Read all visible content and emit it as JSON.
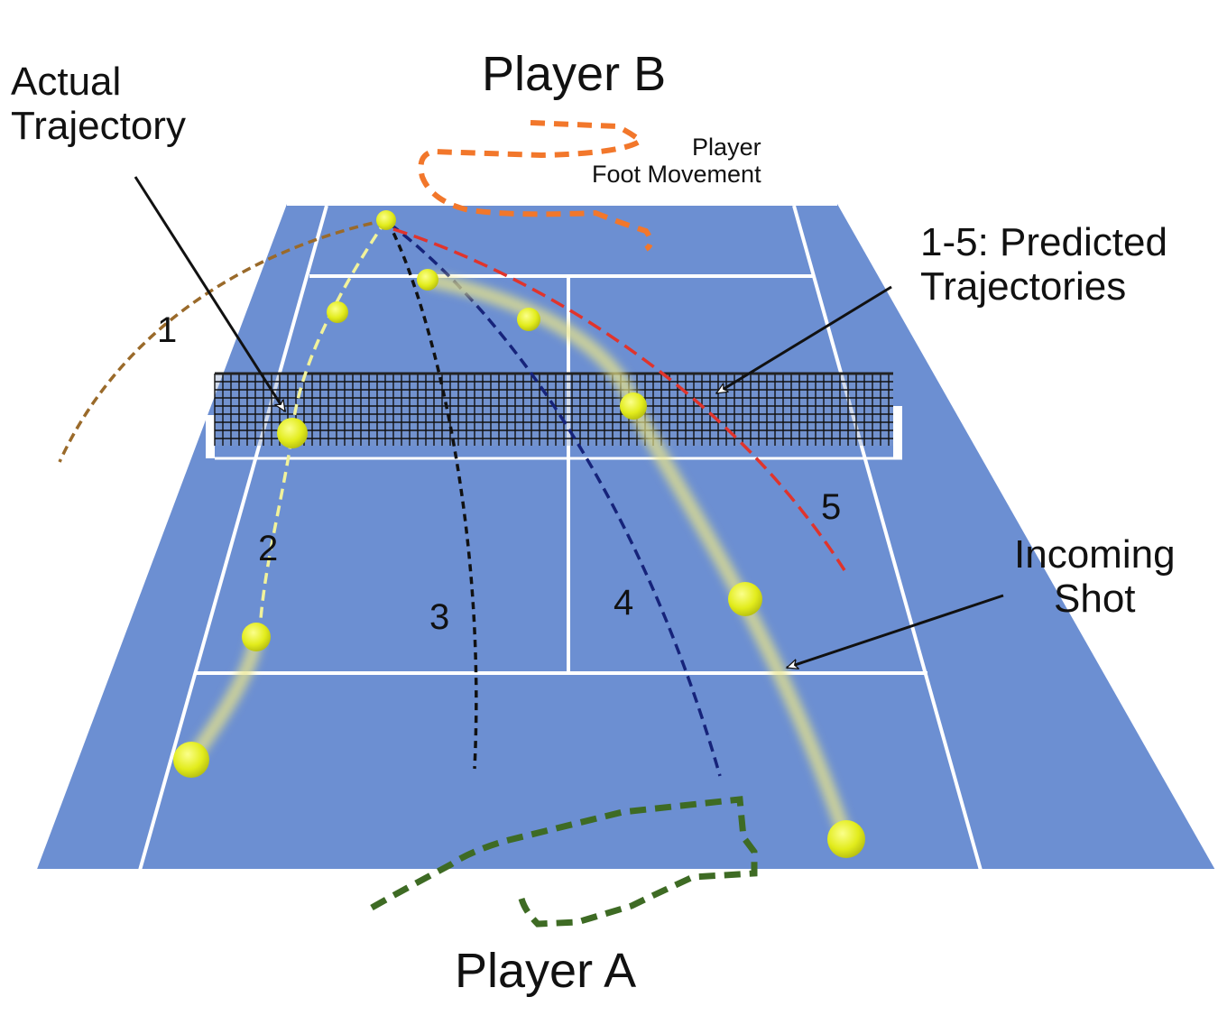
{
  "labels": {
    "player_b": "Player B",
    "player_a": "Player A",
    "actual_trajectory": "Actual\nTrajectory",
    "foot_movement": "Player\nFoot Movement",
    "predicted": "1-5: Predicted\nTrajectories",
    "incoming": "Incoming\nShot"
  },
  "trajectory_numbers": [
    "1",
    "2",
    "3",
    "4",
    "5"
  ],
  "colors": {
    "court": "#6c8fd2",
    "court_lines": "#ffffff",
    "traj_1": "#9a6a2a",
    "traj_2": "#f1f29b",
    "traj_3": "#111111",
    "traj_4": "#16237a",
    "traj_5": "#e0342c",
    "foot_b": "#f2772b",
    "foot_a": "#3e6b24",
    "ball": "#e6ef2c"
  }
}
